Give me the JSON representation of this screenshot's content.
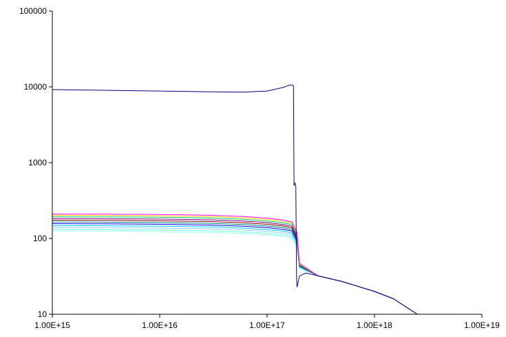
{
  "chart_data": {
    "type": "line",
    "xscale": "log",
    "yscale": "log",
    "xlim": [
      1000000000000000.0,
      1e+19
    ],
    "ylim": [
      10,
      100000
    ],
    "grid": false,
    "legend": "none",
    "xticks": [
      {
        "value": 1000000000000000.0,
        "label": "1.00E+15"
      },
      {
        "value": 1e+16,
        "label": "1.00E+16"
      },
      {
        "value": 1e+17,
        "label": "1.00E+17"
      },
      {
        "value": 1e+18,
        "label": "1.00E+18"
      },
      {
        "value": 1e+19,
        "label": "1.00E+19"
      }
    ],
    "yticks": [
      {
        "value": 10,
        "label": "10"
      },
      {
        "value": 100,
        "label": "100"
      },
      {
        "value": 1000,
        "label": "1000"
      },
      {
        "value": 10000,
        "label": "10000"
      },
      {
        "value": 100000,
        "label": "100000"
      }
    ],
    "series": [
      {
        "color": "#000080",
        "points": [
          [
            1000000000000000.0,
            9200
          ],
          [
            3000000000000000.0,
            9000
          ],
          [
            1e+16,
            8800
          ],
          [
            3e+16,
            8600
          ],
          [
            6e+16,
            8500
          ],
          [
            1e+17,
            8800
          ],
          [
            1.4e+17,
            9800
          ],
          [
            1.6e+17,
            10500
          ],
          [
            1.72e+17,
            10600
          ],
          [
            1.76e+17,
            10300
          ],
          [
            1.78e+17,
            500
          ],
          [
            1.82e+17,
            540
          ],
          [
            1.85e+17,
            480
          ],
          [
            1.88e+17,
            30
          ],
          [
            1.9e+17,
            23
          ],
          [
            1.93e+17,
            25
          ],
          [
            2e+17,
            32
          ],
          [
            2.3e+17,
            35
          ],
          [
            3e+17,
            32
          ],
          [
            5e+17,
            27
          ],
          [
            1e+18,
            20
          ],
          [
            1.5e+18,
            16
          ],
          [
            2.5e+18,
            10
          ]
        ]
      },
      {
        "color": "#ff00ff",
        "points": [
          [
            1000000000000000.0,
            210
          ],
          [
            3000000000000000.0,
            209
          ],
          [
            1e+16,
            207
          ],
          [
            3e+16,
            202
          ],
          [
            6e+16,
            195
          ],
          [
            1e+17,
            185
          ],
          [
            1.4e+17,
            175
          ],
          [
            1.7e+17,
            165
          ],
          [
            1.9e+17,
            120
          ],
          [
            2e+17,
            47
          ],
          [
            3e+17,
            32
          ],
          [
            5e+17,
            27
          ],
          [
            1e+18,
            20
          ],
          [
            1.5e+18,
            16
          ],
          [
            2.5e+18,
            10
          ]
        ]
      },
      {
        "color": "#ffcc00",
        "points": [
          [
            1000000000000000.0,
            202
          ],
          [
            3000000000000000.0,
            201
          ],
          [
            1e+16,
            199
          ],
          [
            3e+16,
            194
          ],
          [
            6e+16,
            187
          ],
          [
            1e+17,
            178
          ],
          [
            1.4e+17,
            168
          ],
          [
            1.7e+17,
            158
          ],
          [
            1.9e+17,
            115
          ],
          [
            2e+17,
            46
          ],
          [
            3e+17,
            32
          ],
          [
            5e+17,
            27
          ],
          [
            1e+18,
            20
          ],
          [
            1.5e+18,
            16
          ],
          [
            2.5e+18,
            10
          ]
        ]
      },
      {
        "color": "#00cc66",
        "points": [
          [
            1000000000000000.0,
            193
          ],
          [
            3000000000000000.0,
            192
          ],
          [
            1e+16,
            190
          ],
          [
            3e+16,
            186
          ],
          [
            6e+16,
            179
          ],
          [
            1e+17,
            170
          ],
          [
            1.4e+17,
            161
          ],
          [
            1.7e+17,
            152
          ],
          [
            1.9e+17,
            110
          ],
          [
            2e+17,
            45
          ],
          [
            3e+17,
            32
          ],
          [
            5e+17,
            27
          ],
          [
            1e+18,
            20
          ],
          [
            1.5e+18,
            16
          ],
          [
            2.5e+18,
            10
          ]
        ]
      },
      {
        "color": "#800080",
        "points": [
          [
            1000000000000000.0,
            183
          ],
          [
            3000000000000000.0,
            182
          ],
          [
            1e+16,
            180
          ],
          [
            3e+16,
            176
          ],
          [
            6e+16,
            170
          ],
          [
            1e+17,
            162
          ],
          [
            1.4e+17,
            153
          ],
          [
            1.7e+17,
            145
          ],
          [
            1.9e+17,
            105
          ],
          [
            2e+17,
            44
          ],
          [
            3e+17,
            32
          ],
          [
            5e+17,
            27
          ],
          [
            1e+18,
            20
          ],
          [
            1.5e+18,
            16
          ],
          [
            2.5e+18,
            10
          ]
        ]
      },
      {
        "color": "#800000",
        "points": [
          [
            1000000000000000.0,
            174
          ],
          [
            3000000000000000.0,
            173
          ],
          [
            1e+16,
            171
          ],
          [
            3e+16,
            167
          ],
          [
            6e+16,
            161
          ],
          [
            1e+17,
            154
          ],
          [
            1.4e+17,
            146
          ],
          [
            1.7e+17,
            138
          ],
          [
            1.9e+17,
            100
          ],
          [
            2e+17,
            44
          ],
          [
            3e+17,
            32
          ],
          [
            5e+17,
            27
          ],
          [
            1e+18,
            20
          ],
          [
            1.5e+18,
            16
          ],
          [
            2.5e+18,
            10
          ]
        ]
      },
      {
        "color": "#008080",
        "points": [
          [
            1000000000000000.0,
            165
          ],
          [
            3000000000000000.0,
            164
          ],
          [
            1e+16,
            162
          ],
          [
            3e+16,
            158
          ],
          [
            6e+16,
            153
          ],
          [
            1e+17,
            146
          ],
          [
            1.4e+17,
            139
          ],
          [
            1.7e+17,
            131
          ],
          [
            1.9e+17,
            96
          ],
          [
            2e+17,
            43
          ],
          [
            3e+17,
            32
          ],
          [
            5e+17,
            27
          ],
          [
            1e+18,
            20
          ],
          [
            1.5e+18,
            16
          ],
          [
            2.5e+18,
            10
          ]
        ]
      },
      {
        "color": "#0000ff",
        "points": [
          [
            1000000000000000.0,
            157
          ],
          [
            3000000000000000.0,
            156
          ],
          [
            1e+16,
            154
          ],
          [
            3e+16,
            150
          ],
          [
            6e+16,
            145
          ],
          [
            1e+17,
            139
          ],
          [
            1.4e+17,
            132
          ],
          [
            1.7e+17,
            125
          ],
          [
            1.9e+17,
            92
          ],
          [
            2e+17,
            43
          ],
          [
            3e+17,
            32
          ],
          [
            5e+17,
            27
          ],
          [
            1e+18,
            20
          ],
          [
            1.5e+18,
            16
          ],
          [
            2.5e+18,
            10
          ]
        ]
      },
      {
        "color": "#00ccff",
        "points": [
          [
            1000000000000000.0,
            148
          ],
          [
            3000000000000000.0,
            147
          ],
          [
            1e+16,
            145
          ],
          [
            3e+16,
            142
          ],
          [
            6e+16,
            137
          ],
          [
            1e+17,
            131
          ],
          [
            1.4e+17,
            125
          ],
          [
            1.7e+17,
            118
          ],
          [
            1.9e+17,
            88
          ],
          [
            2e+17,
            42
          ],
          [
            3e+17,
            32
          ],
          [
            5e+17,
            27
          ],
          [
            1e+18,
            20
          ],
          [
            1.5e+18,
            16
          ],
          [
            2.5e+18,
            10
          ]
        ]
      },
      {
        "color": "#99ccff",
        "points": [
          [
            1000000000000000.0,
            140
          ],
          [
            3000000000000000.0,
            139
          ],
          [
            1e+16,
            137
          ],
          [
            3e+16,
            134
          ],
          [
            6e+16,
            129
          ],
          [
            1e+17,
            124
          ],
          [
            1.4e+17,
            118
          ],
          [
            1.7e+17,
            112
          ],
          [
            1.9e+17,
            84
          ],
          [
            2e+17,
            42
          ],
          [
            3e+17,
            32
          ],
          [
            5e+17,
            27
          ],
          [
            1e+18,
            20
          ],
          [
            1.5e+18,
            16
          ],
          [
            2.5e+18,
            10
          ]
        ]
      },
      {
        "color": "#66ffcc",
        "points": [
          [
            1000000000000000.0,
            132
          ],
          [
            3000000000000000.0,
            131
          ],
          [
            1e+16,
            129
          ],
          [
            3e+16,
            126
          ],
          [
            6e+16,
            122
          ],
          [
            1e+17,
            117
          ],
          [
            1.4e+17,
            111
          ],
          [
            1.7e+17,
            106
          ],
          [
            1.9e+17,
            80
          ],
          [
            2e+17,
            41
          ],
          [
            3e+17,
            32
          ],
          [
            5e+17,
            27
          ],
          [
            1e+18,
            20
          ],
          [
            1.5e+18,
            16
          ],
          [
            2.5e+18,
            10
          ]
        ]
      },
      {
        "color": "#99ffff",
        "points": [
          [
            1000000000000000.0,
            126
          ],
          [
            3000000000000000.0,
            125
          ],
          [
            1e+16,
            123
          ],
          [
            3e+16,
            120
          ],
          [
            6e+16,
            116
          ],
          [
            1e+17,
            111
          ],
          [
            1.4e+17,
            106
          ],
          [
            1.7e+17,
            100
          ],
          [
            1.9e+17,
            76
          ],
          [
            2e+17,
            41
          ],
          [
            3e+17,
            32
          ],
          [
            5e+17,
            27
          ],
          [
            1e+18,
            20
          ],
          [
            1.5e+18,
            16
          ],
          [
            2.5e+18,
            10
          ]
        ]
      }
    ]
  }
}
